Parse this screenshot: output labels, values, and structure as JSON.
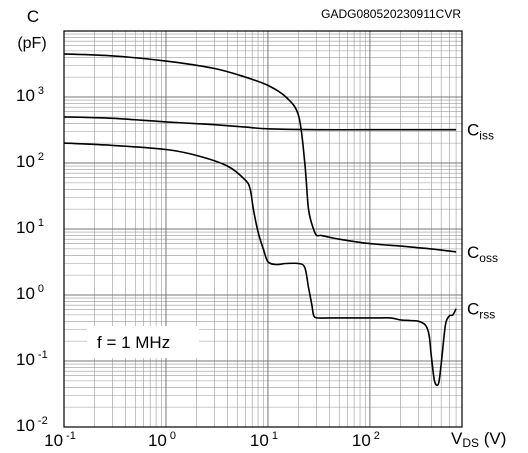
{
  "chart_data": {
    "type": "line",
    "title": "",
    "watermark": "GADG080520230911CVR",
    "ylabel": {
      "main": "C",
      "unit": "(pF)"
    },
    "xlabel": {
      "main": "V",
      "sub": "DS",
      "unit": " (V)"
    },
    "x_scale": "log",
    "y_scale": "log",
    "xlim": [
      0.1,
      800
    ],
    "ylim": [
      0.01,
      10000
    ],
    "grid": "major+minor (log)",
    "x_ticks": [
      {
        "value": 0.1,
        "base": "10",
        "exp": "-1"
      },
      {
        "value": 1,
        "base": "10",
        "exp": "0"
      },
      {
        "value": 10,
        "base": "10",
        "exp": "1"
      },
      {
        "value": 100,
        "base": "10",
        "exp": "2"
      }
    ],
    "y_ticks": [
      {
        "value": 0.01,
        "base": "10",
        "exp": "-2"
      },
      {
        "value": 0.1,
        "base": "10",
        "exp": "-1"
      },
      {
        "value": 1,
        "base": "10",
        "exp": "0"
      },
      {
        "value": 10,
        "base": "10",
        "exp": "1"
      },
      {
        "value": 100,
        "base": "10",
        "exp": "2"
      },
      {
        "value": 1000,
        "base": "10",
        "exp": "3"
      }
    ],
    "annotation": "f = 1 MHz",
    "series": [
      {
        "name": "Ciss",
        "label_main": "C",
        "label_sub": "iss",
        "x": [
          0.1,
          0.3,
          1,
          3,
          6,
          10,
          30,
          100,
          300,
          700
        ],
        "y": [
          500,
          475,
          420,
          380,
          350,
          330,
          320,
          320,
          320,
          320
        ]
      },
      {
        "name": "Coss",
        "label_main": "C",
        "label_sub": "oss",
        "x": [
          0.1,
          0.3,
          1,
          3,
          6,
          10,
          15,
          20,
          23,
          25,
          28,
          30,
          33,
          40,
          50,
          100,
          200,
          400,
          700
        ],
        "y": [
          4500,
          4200,
          3500,
          2700,
          2000,
          1500,
          1000,
          520,
          100,
          20,
          10,
          8,
          8,
          7.5,
          7,
          6,
          5.5,
          5,
          4.5
        ]
      },
      {
        "name": "Crss",
        "label_main": "C",
        "label_sub": "rss",
        "x": [
          0.1,
          0.3,
          1,
          2,
          4,
          6,
          6.7,
          7.2,
          8,
          9,
          10,
          12,
          15,
          20,
          23,
          25,
          27,
          28,
          30,
          40,
          60,
          100,
          130,
          160,
          200,
          250,
          300,
          350,
          380,
          400,
          430,
          470,
          500,
          550,
          600,
          650,
          700
        ],
        "y": [
          200,
          185,
          160,
          130,
          90,
          55,
          40,
          20,
          9,
          5,
          3.2,
          2.9,
          3.0,
          3.0,
          2.6,
          1.3,
          0.7,
          0.5,
          0.45,
          0.45,
          0.45,
          0.45,
          0.45,
          0.45,
          0.42,
          0.41,
          0.4,
          0.35,
          0.25,
          0.12,
          0.05,
          0.045,
          0.09,
          0.35,
          0.48,
          0.5,
          0.62
        ]
      }
    ]
  }
}
